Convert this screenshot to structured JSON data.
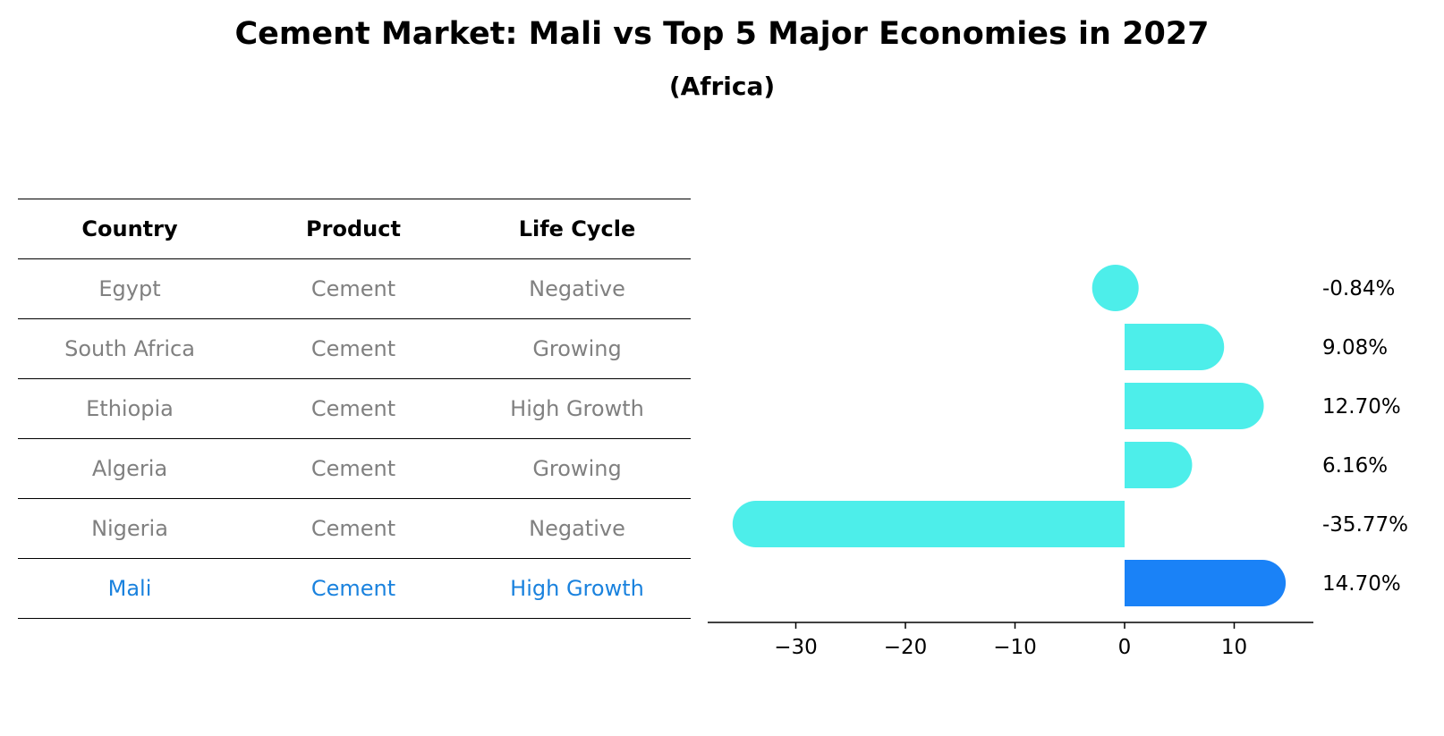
{
  "title": "Cement Market: Mali vs Top 5 Major Economies in 2027",
  "subtitle": "(Africa)",
  "table": {
    "headers": [
      "Country",
      "Product",
      "Life Cycle"
    ],
    "rows": [
      {
        "country": "Egypt",
        "product": "Cement",
        "life_cycle": "Negative"
      },
      {
        "country": "South Africa",
        "product": "Cement",
        "life_cycle": "Growing"
      },
      {
        "country": "Ethiopia",
        "product": "Cement",
        "life_cycle": "High Growth"
      },
      {
        "country": "Algeria",
        "product": "Cement",
        "life_cycle": "Growing"
      },
      {
        "country": "Nigeria",
        "product": "Cement",
        "life_cycle": "Negative"
      },
      {
        "country": "Mali",
        "product": "Cement",
        "life_cycle": "High Growth"
      }
    ]
  },
  "colors": {
    "bar": "#4deeea",
    "highlight_bar": "#1a82f7",
    "highlight_text": "#1a82de",
    "muted_text": "#808080"
  },
  "chart_data": {
    "type": "bar",
    "orientation": "horizontal",
    "categories": [
      "Egypt",
      "South Africa",
      "Ethiopia",
      "Algeria",
      "Nigeria",
      "Mali"
    ],
    "values": [
      -0.84,
      9.08,
      12.7,
      6.16,
      -35.77,
      14.7
    ],
    "data_labels": [
      "-0.84%",
      "9.08%",
      "12.70%",
      "6.16%",
      "-35.77%",
      "14.70%"
    ],
    "highlight": "Mali",
    "xlim": [
      -38,
      17
    ],
    "xticks": [
      -30,
      -20,
      -10,
      0,
      10
    ],
    "xtick_labels": [
      "−30",
      "−20",
      "−10",
      "0",
      "10"
    ]
  }
}
